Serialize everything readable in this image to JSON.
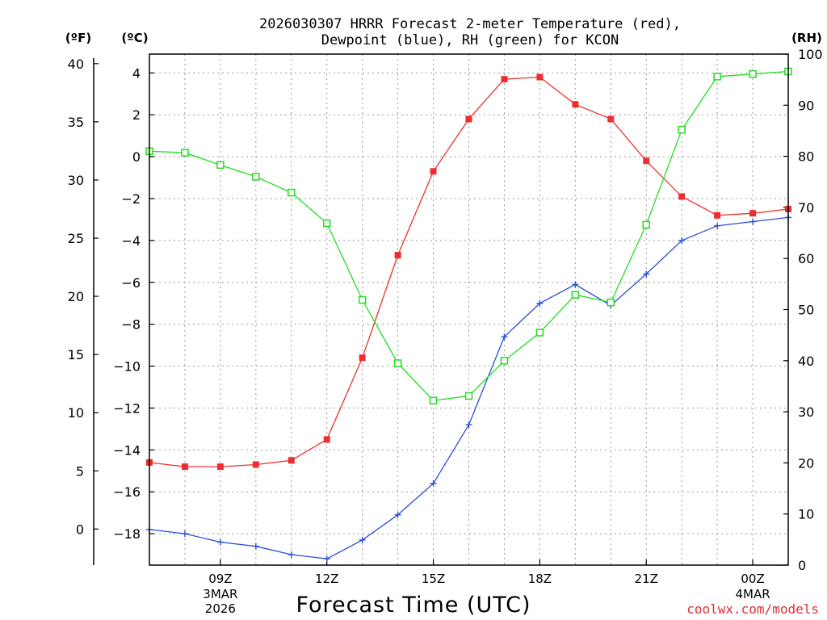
{
  "chart_data": {
    "type": "line",
    "title": [
      "2026030307 HRRR Forecast 2-meter Temperature (red),",
      "Dewpoint (blue), RH (green) for KCON"
    ],
    "units": {
      "fahrenheit": "(ºF)",
      "celsius": "(ºC)",
      "rh": "(RH)"
    },
    "xlabel": "Forecast Time (UTC)",
    "credit": "coolwx.com/models",
    "x_hours": [
      7,
      8,
      9,
      10,
      11,
      12,
      13,
      14,
      15,
      16,
      17,
      18,
      19,
      20,
      21,
      22,
      23,
      24,
      25
    ],
    "x_range": [
      7,
      25
    ],
    "x_ticks": [
      {
        "hour": 9,
        "label": "09Z",
        "sub": [
          "3MAR",
          "2026"
        ]
      },
      {
        "hour": 12,
        "label": "12Z",
        "sub": []
      },
      {
        "hour": 15,
        "label": "15Z",
        "sub": []
      },
      {
        "hour": 18,
        "label": "18Z",
        "sub": []
      },
      {
        "hour": 21,
        "label": "21Z",
        "sub": []
      },
      {
        "hour": 24,
        "label": "00Z",
        "sub": [
          "4MAR"
        ]
      }
    ],
    "ylim_c": [
      -19.5,
      4.9
    ],
    "ylim_rh": [
      0,
      100
    ],
    "y_ticks_c": [
      4,
      2,
      0,
      -2,
      -4,
      -6,
      -8,
      -10,
      -12,
      -14,
      -16,
      -18
    ],
    "y_ticks_f": [
      40,
      35,
      30,
      25,
      20,
      15,
      10,
      5,
      0
    ],
    "y_ticks_rh": [
      100,
      90,
      80,
      70,
      60,
      50,
      40,
      30,
      20,
      10,
      0
    ],
    "series": [
      {
        "name": "Temperature",
        "axis": "c",
        "color": "#ee2e2e",
        "marker": "filled-square",
        "values": [
          -14.6,
          -14.8,
          -14.8,
          -14.7,
          -14.5,
          -13.5,
          -9.6,
          -4.7,
          -0.7,
          1.8,
          3.7,
          3.8,
          2.5,
          1.8,
          -0.2,
          -1.9,
          -2.8,
          -2.7,
          -2.5
        ]
      },
      {
        "name": "Dewpoint",
        "axis": "c",
        "color": "#2b4fd6",
        "marker": "plus",
        "values": [
          -17.8,
          -18.0,
          -18.4,
          -18.6,
          -19.0,
          -19.2,
          -18.3,
          -17.1,
          -15.6,
          -12.8,
          -8.6,
          -7.0,
          -6.1,
          -7.1,
          -5.6,
          -4.0,
          -3.3,
          -3.1,
          -2.9
        ]
      },
      {
        "name": "RH",
        "axis": "rh",
        "color": "#22dd22",
        "marker": "open-square",
        "values": [
          81,
          80.7,
          78.3,
          76,
          72.9,
          66.9,
          51.9,
          39.5,
          32.2,
          33.1,
          40,
          45.5,
          52.9,
          51.4,
          66.6,
          85.2,
          95.6,
          96.1,
          96.6
        ]
      }
    ]
  }
}
